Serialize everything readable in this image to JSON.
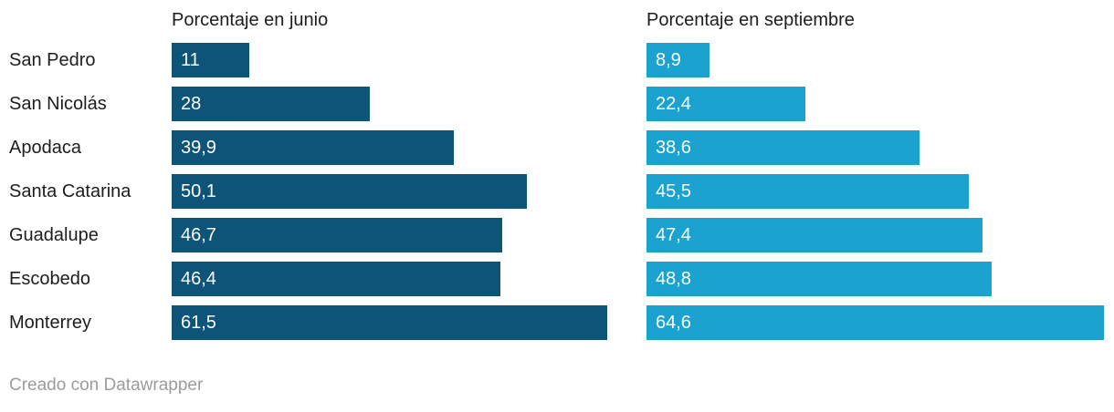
{
  "chart_data": {
    "type": "bar",
    "orientation": "horizontal",
    "categories": [
      "San Pedro",
      "San Nicolás",
      "Apodaca",
      "Santa Catarina",
      "Guadalupe",
      "Escobedo",
      "Monterrey"
    ],
    "series": [
      {
        "name": "Porcentaje en junio",
        "values": [
          11,
          28,
          39.9,
          50.1,
          46.7,
          46.4,
          61.5
        ],
        "display": [
          "11",
          "28",
          "39,9",
          "50,1",
          "46,7",
          "46,4",
          "61,5"
        ],
        "color": "#0e5479"
      },
      {
        "name": "Porcentaje en septiembre",
        "values": [
          8.9,
          22.4,
          38.6,
          45.5,
          47.4,
          48.8,
          64.6
        ],
        "display": [
          "8,9",
          "22,4",
          "38,6",
          "45,5",
          "47,4",
          "48,8",
          "64,6"
        ],
        "color": "#1ca2ce"
      }
    ],
    "title": "",
    "xlabel": "",
    "ylabel": "",
    "xlim": [
      0,
      64.6
    ],
    "grid": false,
    "legend_position": "column-headers",
    "value_labels": "inside-bar-start"
  },
  "headers": {
    "junio": "Porcentaje en junio",
    "septiembre": "Porcentaje en septiembre"
  },
  "footer": {
    "credit": "Creado con Datawrapper"
  },
  "colors": {
    "junio_bar": "#0e5479",
    "septiembre_bar": "#1ca2ce",
    "category_text": "#1d1d1d",
    "header_text": "#1d1d1d",
    "value_text": "#ffffff",
    "credit_text": "#9c9c9c",
    "background": "#ffffff"
  }
}
